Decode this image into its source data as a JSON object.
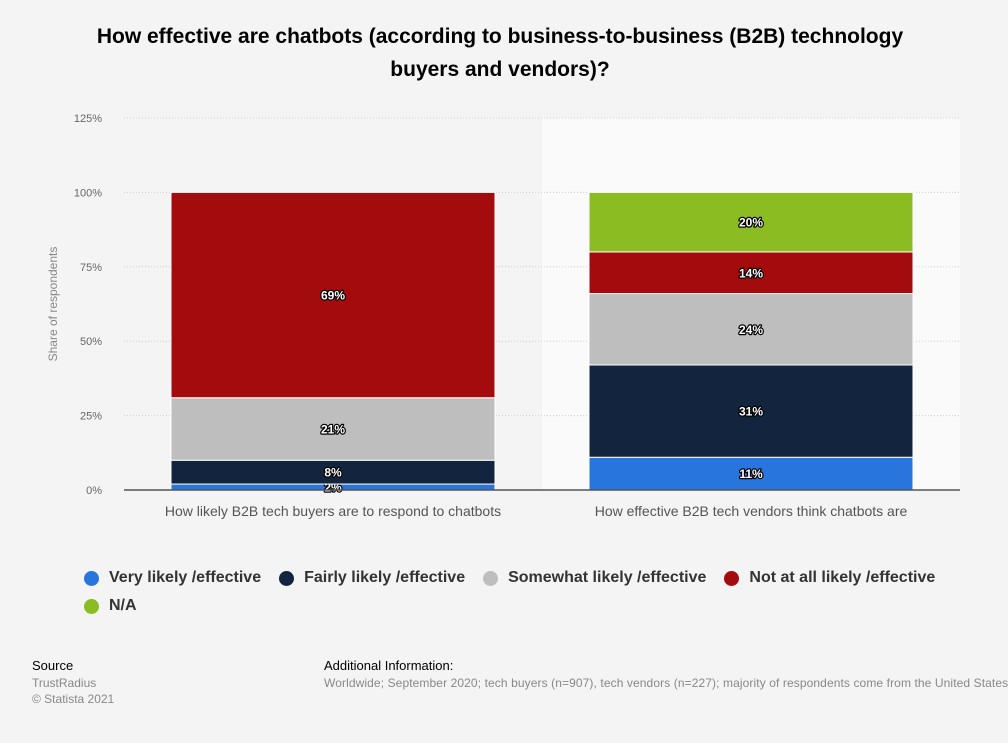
{
  "chart_data": {
    "type": "bar",
    "stacked": true,
    "title": "How effective are chatbots (according to business-to-business (B2B) technology buyers and vendors)?",
    "ylabel": "Share of respondents",
    "ylim": [
      0,
      125
    ],
    "yticks": [
      "0%",
      "25%",
      "50%",
      "75%",
      "100%",
      "125%"
    ],
    "grid": true,
    "legend_position": "bottom",
    "categories": [
      "How likely B2B tech buyers are to respond to chatbots",
      "How effective B2B tech vendors think chatbots are"
    ],
    "series": [
      {
        "name": "Very likely /effective",
        "color": "#2876dd",
        "values": [
          2,
          11
        ]
      },
      {
        "name": "Fairly likely /effective",
        "color": "#13253e",
        "values": [
          8,
          31
        ]
      },
      {
        "name": "Somewhat likely /effective",
        "color": "#bebebe",
        "values": [
          21,
          24
        ]
      },
      {
        "name": "Not at all likely /effective",
        "color": "#a30b0d",
        "values": [
          69,
          14
        ]
      },
      {
        "name": "N/A",
        "color": "#8bbc21",
        "values": [
          0,
          20
        ]
      }
    ]
  },
  "footer": {
    "source_label": "Source",
    "source_name": "TrustRadius",
    "copyright": "© Statista 2021",
    "info_label": "Additional Information:",
    "info_text": "Worldwide; September 2020; tech buyers (n=907), tech vendors (n=227); majority of respondents come from the United States"
  }
}
